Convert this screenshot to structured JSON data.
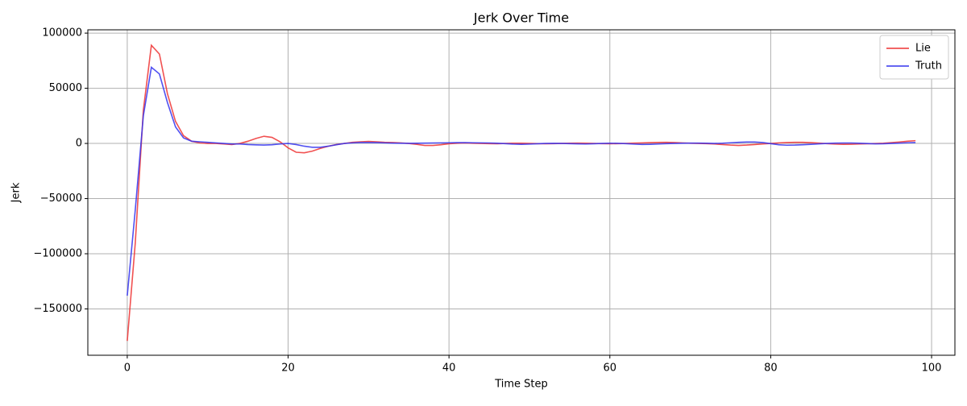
{
  "chart_data": {
    "type": "line",
    "title": "Jerk Over Time",
    "x_label": "Time Step",
    "y_label": "Jerk",
    "x": [
      0,
      1,
      2,
      3,
      4,
      5,
      6,
      7,
      8,
      9,
      10,
      11,
      12,
      13,
      14,
      15,
      16,
      17,
      18,
      19,
      20,
      21,
      22,
      23,
      24,
      25,
      26,
      27,
      28,
      29,
      30,
      31,
      32,
      33,
      34,
      35,
      36,
      37,
      38,
      39,
      40,
      41,
      42,
      43,
      44,
      45,
      46,
      47,
      48,
      49,
      50,
      51,
      52,
      53,
      54,
      55,
      56,
      57,
      58,
      59,
      60,
      61,
      62,
      63,
      64,
      65,
      66,
      67,
      68,
      69,
      70,
      71,
      72,
      73,
      74,
      75,
      76,
      77,
      78,
      79,
      80,
      81,
      82,
      83,
      84,
      85,
      86,
      87,
      88,
      89,
      90,
      91,
      92,
      93,
      94,
      95,
      96,
      97,
      98
    ],
    "series": [
      {
        "name": "Lie",
        "color": "#ee3333",
        "values": [
          -179000,
          -90000,
          30000,
          89000,
          81000,
          45000,
          20000,
          7000,
          2000,
          500,
          0,
          0,
          -500,
          -1000,
          0,
          2000,
          4500,
          6500,
          5500,
          1500,
          -4000,
          -8000,
          -8500,
          -7000,
          -4500,
          -2500,
          -1000,
          0,
          1000,
          1500,
          1800,
          1500,
          1000,
          800,
          500,
          0,
          -800,
          -1800,
          -1800,
          -1200,
          -300,
          200,
          400,
          200,
          0,
          -200,
          -300,
          0,
          200,
          200,
          0,
          -200,
          -300,
          -200,
          0,
          200,
          300,
          200,
          0,
          -200,
          -300,
          -200,
          0,
          300,
          500,
          700,
          900,
          1000,
          800,
          500,
          200,
          0,
          -200,
          -500,
          -1000,
          -1500,
          -1800,
          -1500,
          -1000,
          -500,
          0,
          500,
          800,
          1000,
          1000,
          700,
          300,
          -200,
          -600,
          -800,
          -700,
          -500,
          -300,
          -100,
          200,
          700,
          1300,
          2000,
          2500
        ]
      },
      {
        "name": "Truth",
        "color": "#3333ee",
        "values": [
          -138000,
          -60000,
          25000,
          69000,
          63000,
          37000,
          15000,
          5000,
          2000,
          1500,
          1000,
          500,
          0,
          -500,
          -500,
          -1000,
          -1300,
          -1500,
          -1200,
          -500,
          0,
          -1000,
          -2500,
          -3500,
          -3500,
          -2500,
          -1200,
          0,
          500,
          800,
          800,
          700,
          500,
          300,
          200,
          100,
          200,
          300,
          400,
          500,
          600,
          700,
          700,
          600,
          500,
          400,
          200,
          -200,
          -600,
          -800,
          -600,
          -300,
          0,
          100,
          0,
          -200,
          -400,
          -500,
          -300,
          0,
          200,
          100,
          -200,
          -600,
          -900,
          -800,
          -500,
          -200,
          0,
          200,
          300,
          300,
          200,
          0,
          200,
          600,
          1000,
          1300,
          1300,
          800,
          -200,
          -1200,
          -1600,
          -1500,
          -1200,
          -800,
          -400,
          0,
          300,
          400,
          400,
          200,
          -100,
          -400,
          -300,
          0,
          300,
          600,
          800
        ]
      }
    ],
    "xlim": [
      -4.9,
      102.9
    ],
    "xticks": [
      0,
      20,
      40,
      60,
      80,
      100
    ],
    "ylim": [
      -192000,
      103000
    ],
    "yticks": [
      {
        "value": -150000,
        "label": "−150000"
      },
      {
        "value": -100000,
        "label": "−100000"
      },
      {
        "value": -50000,
        "label": "−50000"
      },
      0,
      50000,
      100000
    ],
    "grid": true,
    "legend": "upper right"
  }
}
